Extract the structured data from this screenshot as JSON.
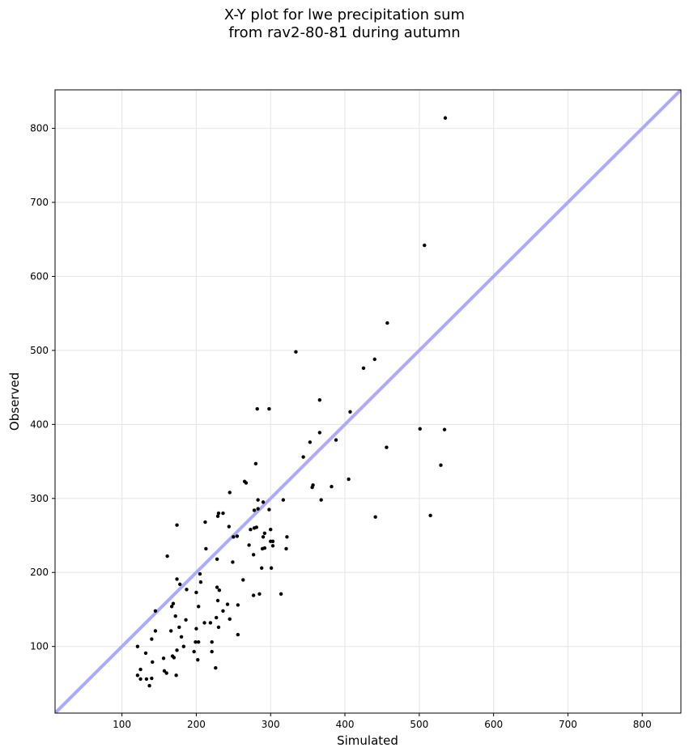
{
  "chart_data": {
    "type": "scatter",
    "title": "X-Y plot for lwe precipitation sum\nfrom rav2-80-81 during autumn",
    "xlabel": "Simulated",
    "ylabel": "Observed",
    "xlim": [
      10,
      852
    ],
    "ylim": [
      10,
      852
    ],
    "xticks": [
      100,
      200,
      300,
      400,
      500,
      600,
      700,
      800
    ],
    "yticks": [
      100,
      200,
      300,
      400,
      500,
      600,
      700,
      800
    ],
    "grid": true,
    "reference_line": {
      "type": "y=x",
      "color": "#aaaaff"
    },
    "point_color": "#000000",
    "points": [
      [
        535,
        814
      ],
      [
        507,
        642
      ],
      [
        457,
        537
      ],
      [
        334,
        498
      ],
      [
        440,
        488
      ],
      [
        425,
        476
      ],
      [
        366,
        433
      ],
      [
        407,
        417
      ],
      [
        282,
        421
      ],
      [
        298,
        421
      ],
      [
        534,
        393
      ],
      [
        501,
        394
      ],
      [
        366,
        389
      ],
      [
        388,
        379
      ],
      [
        353,
        376
      ],
      [
        456,
        369
      ],
      [
        344,
        356
      ],
      [
        280,
        347
      ],
      [
        529,
        345
      ],
      [
        405,
        326
      ],
      [
        265,
        323
      ],
      [
        267,
        321
      ],
      [
        357,
        318
      ],
      [
        356,
        315
      ],
      [
        382,
        316
      ],
      [
        245,
        308
      ],
      [
        283,
        298
      ],
      [
        317,
        298
      ],
      [
        368,
        298
      ],
      [
        290,
        295
      ],
      [
        298,
        285
      ],
      [
        283,
        286
      ],
      [
        278,
        284
      ],
      [
        236,
        280
      ],
      [
        230,
        280
      ],
      [
        229,
        276
      ],
      [
        441,
        275
      ],
      [
        515,
        277
      ],
      [
        174,
        264
      ],
      [
        212,
        268
      ],
      [
        278,
        260
      ],
      [
        281,
        261
      ],
      [
        273,
        258
      ],
      [
        300,
        258
      ],
      [
        244,
        262
      ],
      [
        292,
        253
      ],
      [
        290,
        248
      ],
      [
        322,
        248
      ],
      [
        250,
        248
      ],
      [
        255,
        249
      ],
      [
        300,
        242
      ],
      [
        303,
        242
      ],
      [
        303,
        236
      ],
      [
        271,
        237
      ],
      [
        289,
        232
      ],
      [
        292,
        233
      ],
      [
        321,
        232
      ],
      [
        213,
        232
      ],
      [
        277,
        224
      ],
      [
        161,
        222
      ],
      [
        228,
        218
      ],
      [
        249,
        214
      ],
      [
        288,
        206
      ],
      [
        301,
        206
      ],
      [
        205,
        198
      ],
      [
        263,
        190
      ],
      [
        174,
        191
      ],
      [
        178,
        184
      ],
      [
        206,
        187
      ],
      [
        187,
        177
      ],
      [
        228,
        180
      ],
      [
        231,
        176
      ],
      [
        200,
        173
      ],
      [
        314,
        171
      ],
      [
        277,
        169
      ],
      [
        285,
        171
      ],
      [
        229,
        162
      ],
      [
        169,
        158
      ],
      [
        242,
        157
      ],
      [
        256,
        156
      ],
      [
        167,
        154
      ],
      [
        203,
        154
      ],
      [
        145,
        148
      ],
      [
        236,
        148
      ],
      [
        172,
        141
      ],
      [
        227,
        139
      ],
      [
        245,
        137
      ],
      [
        186,
        136
      ],
      [
        211,
        132
      ],
      [
        219,
        132
      ],
      [
        230,
        126
      ],
      [
        200,
        124
      ],
      [
        177,
        126
      ],
      [
        166,
        121
      ],
      [
        145,
        121
      ],
      [
        256,
        116
      ],
      [
        180,
        113
      ],
      [
        140,
        110
      ],
      [
        221,
        106
      ],
      [
        199,
        106
      ],
      [
        203,
        106
      ],
      [
        183,
        100
      ],
      [
        121,
        100
      ],
      [
        221,
        93
      ],
      [
        197,
        93
      ],
      [
        174,
        95
      ],
      [
        168,
        87
      ],
      [
        132,
        91
      ],
      [
        170,
        85
      ],
      [
        156,
        84
      ],
      [
        202,
        82
      ],
      [
        141,
        79
      ],
      [
        125,
        69
      ],
      [
        157,
        67
      ],
      [
        160,
        64
      ],
      [
        226,
        71
      ],
      [
        173,
        61
      ],
      [
        121,
        61
      ],
      [
        125,
        56
      ],
      [
        133,
        56
      ],
      [
        140,
        57
      ],
      [
        137,
        47
      ]
    ]
  }
}
